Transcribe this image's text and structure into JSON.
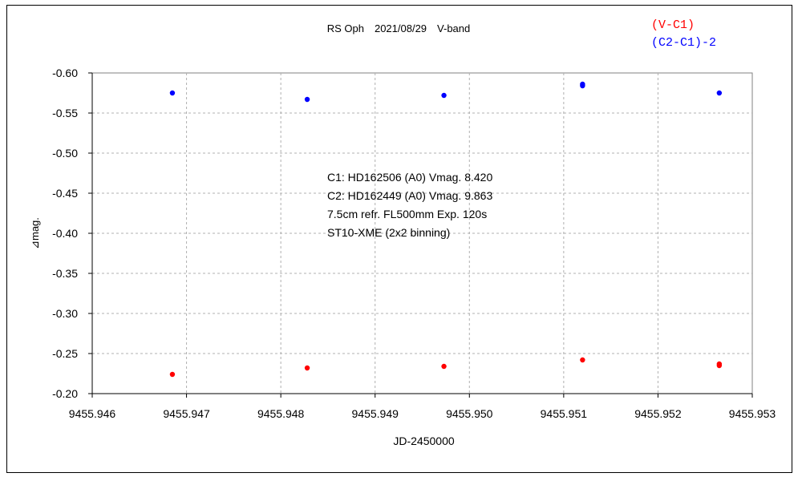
{
  "chart_data": {
    "type": "scatter",
    "title": "RS Oph　2021/08/29　V-band",
    "xlabel": "JD-2450000",
    "ylabel": "⊿mag.",
    "xlim": [
      9455.946,
      9455.953
    ],
    "ylim": [
      -0.2,
      -0.6
    ],
    "y_inverted": true,
    "grid": true,
    "legend_placement": "top-right",
    "x_ticks": [
      "9455.946",
      "9455.947",
      "9455.948",
      "9455.949",
      "9455.950",
      "9455.951",
      "9455.952",
      "9455.953"
    ],
    "y_ticks": [
      "-0.60",
      "-0.55",
      "-0.50",
      "-0.45",
      "-0.40",
      "-0.35",
      "-0.30",
      "-0.25",
      "-0.20"
    ],
    "series": [
      {
        "name": "(V-C1)",
        "color": "#ff0000",
        "x": [
          9455.94685,
          9455.94828,
          9455.94973,
          9455.9512,
          9455.95265,
          9455.95265
        ],
        "y": [
          -0.224,
          -0.232,
          -0.234,
          -0.242,
          -0.235,
          -0.237
        ]
      },
      {
        "name": "(C2-C1)-2",
        "color": "#0000ff",
        "x": [
          9455.94685,
          9455.94828,
          9455.94973,
          9455.9512,
          9455.9512,
          9455.95265
        ],
        "y": [
          -0.575,
          -0.567,
          -0.572,
          -0.584,
          -0.586,
          -0.575
        ]
      }
    ],
    "annotations": [
      "C1: HD162506 (A0) Vmag. 8.420",
      "C2: HD162449 (A0) Vmag. 9.863",
      "7.5cm refr. FL500mm Exp. 120s",
      "ST10-XME (2x2 binning)"
    ]
  }
}
